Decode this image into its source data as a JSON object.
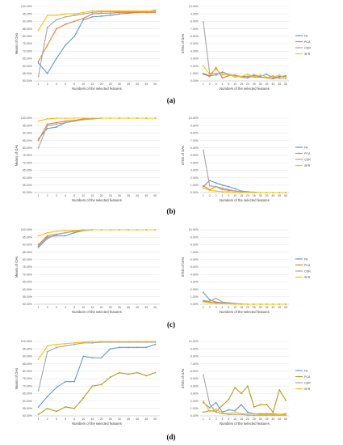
{
  "figure": {
    "panel_labels": [
      "(a)",
      "(b)",
      "(c)",
      "(d)"
    ],
    "x_axis_label": "Numbers of the selected features",
    "mean_axis_label": "Means of OAs",
    "std_axis_label": "STDs of OAs",
    "mean_ticks": [
      "50.00%",
      "55.00%",
      "60.00%",
      "65.00%",
      "70.00%",
      "75.00%",
      "80.00%",
      "85.00%",
      "90.00%",
      "95.00%",
      "100.00%"
    ],
    "std_ticks": [
      "0.00%",
      "1.00%",
      "2.00%",
      "3.00%",
      "4.00%",
      "5.00%",
      "6.00%",
      "7.00%",
      "8.00%",
      "9.00%",
      "10.00%"
    ],
    "x_categories": [
      "1",
      "2",
      "3",
      "4",
      "5",
      "10",
      "15",
      "20",
      "25",
      "30",
      "35",
      "40",
      "45",
      "50"
    ]
  },
  "colors": {
    "FA": "#5b9bd5",
    "PCA": "#ed7d31",
    "CDR": "#a5a5a5",
    "SFR": "#ffc000",
    "PCA_d": "#b59b1b",
    "grid": "#d9d9d9",
    "axis": "#bfbfbf"
  },
  "chart_data": [
    {
      "panel": "(a)",
      "type": "line",
      "xlabel": "Numbers of the selected features",
      "ylabel": "Means of OAs",
      "ylim": [
        50,
        100
      ],
      "unit": "%",
      "grid": true,
      "legend": "none",
      "categories": [
        "1",
        "2",
        "3",
        "4",
        "5",
        "10",
        "15",
        "20",
        "25",
        "30",
        "35",
        "40",
        "45",
        "50"
      ],
      "series": [
        {
          "name": "FA",
          "values": [
            62,
            55,
            65,
            74,
            80,
            91,
            93,
            93.5,
            94,
            95,
            95.5,
            96,
            96.5,
            97.5
          ]
        },
        {
          "name": "PCA",
          "values": [
            63,
            74,
            85,
            88,
            90,
            92,
            95,
            95.5,
            95.5,
            96,
            96,
            96,
            96,
            96
          ]
        },
        {
          "name": "CDR",
          "values": [
            53,
            86,
            91,
            93,
            94,
            95,
            96,
            96.5,
            96.5,
            96.5,
            96.5,
            96.5,
            96.5,
            96.5
          ]
        },
        {
          "name": "SFR",
          "values": [
            84,
            94,
            94,
            95,
            95,
            96,
            97,
            97,
            97,
            97,
            97,
            97,
            97,
            97
          ]
        }
      ]
    },
    {
      "panel": "(a)",
      "type": "line",
      "xlabel": "Numbers of the selected features",
      "ylabel": "STDs of OAs",
      "ylim": [
        0,
        10
      ],
      "unit": "%",
      "grid": true,
      "legend": "right",
      "categories": [
        "1",
        "2",
        "3",
        "4",
        "5",
        "10",
        "15",
        "20",
        "25",
        "30",
        "35",
        "40",
        "45",
        "50"
      ],
      "series": [
        {
          "name": "FA",
          "values": [
            1.0,
            0.7,
            0.8,
            1.2,
            0.9,
            0.7,
            0.6,
            0.6,
            0.8,
            0.6,
            0.9,
            0.4,
            0.6,
            0.6
          ]
        },
        {
          "name": "PCA",
          "values": [
            0.9,
            0.6,
            1.8,
            0.4,
            0.7,
            0.8,
            0.5,
            0.4,
            0.7,
            0.5,
            0.4,
            0.3,
            0.5,
            0.7
          ]
        },
        {
          "name": "CDR",
          "values": [
            7.9,
            1.0,
            1.0,
            0.9,
            0.8,
            0.7,
            0.5,
            0.6,
            0.5,
            0.5,
            0.4,
            0.7,
            0.3,
            0.4
          ]
        },
        {
          "name": "SFR",
          "values": [
            2.0,
            0.9,
            1.6,
            0.8,
            0.9,
            0.5,
            0.6,
            0.9,
            0.5,
            0.8,
            0.5,
            0.5,
            0.8,
            0.3
          ]
        }
      ]
    },
    {
      "panel": "(b)",
      "type": "line",
      "xlabel": "Numbers of the selected features",
      "ylabel": "Means of OAs",
      "ylim": [
        50,
        100
      ],
      "unit": "%",
      "grid": true,
      "legend": "none",
      "categories": [
        "1",
        "2",
        "3",
        "4",
        "5",
        "10",
        "15",
        "20",
        "25",
        "30",
        "35",
        "40",
        "45",
        "50"
      ],
      "series": [
        {
          "name": "FA",
          "values": [
            86,
            93,
            94,
            97,
            98,
            99,
            99.5,
            100,
            100,
            100,
            100,
            100,
            100,
            100
          ]
        },
        {
          "name": "PCA",
          "values": [
            85,
            96,
            97,
            98,
            98.5,
            99.5,
            100,
            100,
            100,
            100,
            100,
            100,
            100,
            100
          ]
        },
        {
          "name": "CDR",
          "values": [
            80,
            95,
            96,
            97,
            98,
            99,
            99.5,
            100,
            100,
            100,
            100,
            100,
            100,
            100
          ]
        },
        {
          "name": "SFR",
          "values": [
            98,
            99.5,
            100,
            100,
            100,
            100,
            100,
            100,
            100,
            100,
            100,
            100,
            100,
            100
          ]
        }
      ]
    },
    {
      "panel": "(b)",
      "type": "line",
      "xlabel": "Numbers of the selected features",
      "ylabel": "STDs of OAs",
      "ylim": [
        0,
        10
      ],
      "unit": "%",
      "grid": true,
      "legend": "right",
      "categories": [
        "1",
        "2",
        "3",
        "4",
        "5",
        "10",
        "15",
        "20",
        "25",
        "30",
        "35",
        "40",
        "45",
        "50"
      ],
      "series": [
        {
          "name": "FA",
          "values": [
            0.8,
            1.6,
            1.3,
            1.0,
            0.8,
            0.5,
            0.2,
            0.1,
            0.05,
            0.0,
            0.0,
            0.0,
            0.0,
            0.0
          ]
        },
        {
          "name": "PCA",
          "values": [
            0.9,
            0.4,
            0.8,
            0.4,
            0.3,
            0.2,
            0.1,
            0.05,
            0.0,
            0.0,
            0.0,
            0.0,
            0.0,
            0.0
          ]
        },
        {
          "name": "CDR",
          "values": [
            5.7,
            0.9,
            0.8,
            0.6,
            0.4,
            0.2,
            0.1,
            0.05,
            0.0,
            0.0,
            0.0,
            0.0,
            0.0,
            0.0
          ]
        },
        {
          "name": "SFR",
          "values": [
            0.6,
            0.3,
            0.2,
            0.1,
            0.1,
            0.05,
            0.0,
            0.0,
            0.0,
            0.0,
            0.0,
            0.0,
            0.0,
            0.0
          ]
        }
      ]
    },
    {
      "panel": "(c)",
      "type": "line",
      "xlabel": "Numbers of the selected features",
      "ylabel": "Means of OAs",
      "ylim": [
        50,
        100
      ],
      "unit": "%",
      "grid": true,
      "legend": "none",
      "categories": [
        "1",
        "2",
        "3",
        "4",
        "5",
        "10",
        "15",
        "20",
        "25",
        "30",
        "35",
        "40",
        "45",
        "50"
      ],
      "series": [
        {
          "name": "FA",
          "values": [
            89,
            95,
            96,
            96,
            98,
            99.5,
            100,
            100,
            100,
            100,
            100,
            100,
            100,
            100
          ]
        },
        {
          "name": "PCA",
          "values": [
            90,
            96,
            97,
            98,
            99,
            99.5,
            100,
            100,
            100,
            100,
            100,
            100,
            100,
            100
          ]
        },
        {
          "name": "CDR",
          "values": [
            88,
            94,
            97,
            98,
            99,
            99.5,
            100,
            100,
            100,
            100,
            100,
            100,
            100,
            100
          ]
        },
        {
          "name": "SFR",
          "values": [
            96,
            98,
            99,
            99.5,
            99.5,
            100,
            100,
            100,
            100,
            100,
            100,
            100,
            100,
            100
          ]
        }
      ]
    },
    {
      "panel": "(c)",
      "type": "line",
      "xlabel": "Numbers of the selected features",
      "ylabel": "STDs of OAs",
      "ylim": [
        0,
        10
      ],
      "unit": "%",
      "grid": true,
      "legend": "right",
      "categories": [
        "1",
        "2",
        "3",
        "4",
        "5",
        "10",
        "15",
        "20",
        "25",
        "30",
        "35",
        "40",
        "45",
        "50"
      ],
      "series": [
        {
          "name": "FA",
          "values": [
            1.6,
            0.6,
            0.3,
            0.2,
            0.1,
            0.05,
            0.0,
            0.0,
            0.0,
            0.0,
            0.0,
            0.0,
            0.0,
            0.0
          ]
        },
        {
          "name": "PCA",
          "values": [
            0.4,
            0.3,
            0.2,
            0.1,
            0.1,
            0.05,
            0.0,
            0.0,
            0.0,
            0.0,
            0.0,
            0.0,
            0.0,
            0.0
          ]
        },
        {
          "name": "CDR",
          "values": [
            0.5,
            0.4,
            0.8,
            0.3,
            0.2,
            0.1,
            0.05,
            0.0,
            0.0,
            0.0,
            0.0,
            0.0,
            0.0,
            0.0
          ]
        },
        {
          "name": "SFR",
          "values": [
            0.3,
            0.2,
            0.1,
            0.1,
            0.05,
            0.0,
            0.0,
            0.0,
            0.0,
            0.0,
            0.0,
            0.0,
            0.0,
            0.0
          ]
        }
      ]
    },
    {
      "panel": "(d)",
      "type": "line",
      "xlabel": "Numbers of the selected features",
      "ylabel": "Means of OAs",
      "ylim": [
        50,
        100
      ],
      "unit": "%",
      "grid": true,
      "legend": "none",
      "categories": [
        "1",
        "2",
        "3",
        "4",
        "5",
        "10",
        "15",
        "20",
        "25",
        "30",
        "35",
        "40",
        "45",
        "50"
      ],
      "series": [
        {
          "name": "FA",
          "values": [
            56,
            63,
            69,
            73,
            73,
            90,
            89,
            89,
            95,
            96,
            96,
            96,
            96,
            98
          ]
        },
        {
          "name": "PCA",
          "values": [
            51,
            55,
            53,
            56,
            55,
            62,
            70,
            71,
            76,
            79,
            78,
            79,
            77,
            79
          ]
        },
        {
          "name": "CDR",
          "values": [
            67,
            93,
            96,
            97,
            98,
            99,
            99,
            99.5,
            99.5,
            99.5,
            99.5,
            99.5,
            99.5,
            99.5
          ]
        },
        {
          "name": "SFR",
          "values": [
            88,
            97,
            98,
            98.5,
            99,
            99.5,
            100,
            100,
            100,
            100,
            100,
            100,
            100,
            100
          ]
        }
      ]
    },
    {
      "panel": "(d)",
      "type": "line",
      "xlabel": "Numbers of the selected features",
      "ylabel": "STDs of OAs",
      "ylim": [
        0,
        10
      ],
      "unit": "%",
      "grid": true,
      "legend": "right",
      "categories": [
        "1",
        "2",
        "3",
        "4",
        "5",
        "10",
        "15",
        "20",
        "25",
        "30",
        "35",
        "40",
        "45",
        "50"
      ],
      "series": [
        {
          "name": "FA",
          "values": [
            1.8,
            1.1,
            1.8,
            0.5,
            0.8,
            0.7,
            1.5,
            0.5,
            0.3,
            0.3,
            0.3,
            0.3,
            0.2,
            0.3
          ]
        },
        {
          "name": "PCA",
          "values": [
            0.5,
            0.7,
            0.6,
            1.4,
            2.2,
            3.8,
            3.0,
            4.0,
            1.2,
            1.5,
            1.5,
            0.5,
            3.5,
            2.1
          ]
        },
        {
          "name": "CDR",
          "values": [
            5.5,
            1.6,
            0.5,
            0.3,
            0.2,
            0.2,
            0.2,
            0.1,
            0.1,
            0.1,
            0.1,
            0.1,
            0.1,
            0.1
          ]
        },
        {
          "name": "SFR",
          "values": [
            2.0,
            0.6,
            0.9,
            0.4,
            0.3,
            0.5,
            0.3,
            0.3,
            0.3,
            0.2,
            0.2,
            0.2,
            0.2,
            0.2
          ]
        }
      ]
    }
  ]
}
